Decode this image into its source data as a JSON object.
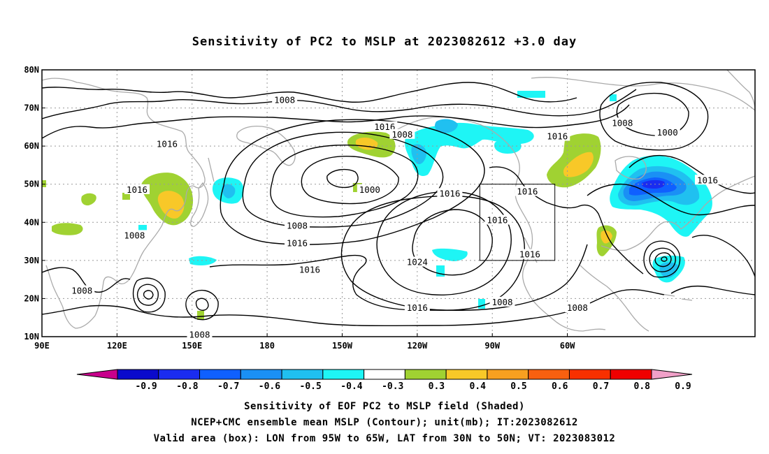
{
  "title": "Sensitivity of PC2 to MSLP at 2023082612 +3.0 day",
  "map": {
    "lon_labels": [
      "90E",
      "120E",
      "150E",
      "180",
      "150W",
      "120W",
      "90W",
      "60W"
    ],
    "lat_labels": [
      "80N",
      "70N",
      "60N",
      "50N",
      "40N",
      "30N",
      "20N",
      "10N"
    ],
    "contour_labels": [
      {
        "text": "1008",
        "lon": 187,
        "lat": 72.0
      },
      {
        "text": "1016",
        "lon": 140,
        "lat": 60.5
      },
      {
        "text": "1016",
        "lon": 227,
        "lat": 65.0
      },
      {
        "text": "1008",
        "lon": 234,
        "lat": 63.0
      },
      {
        "text": "1016",
        "lon": 296,
        "lat": 62.5
      },
      {
        "text": "1008",
        "lon": 322,
        "lat": 66.0
      },
      {
        "text": "1000",
        "lon": 340,
        "lat": 63.5
      },
      {
        "text": "1016",
        "lon": 128,
        "lat": 48.5
      },
      {
        "text": "1008",
        "lon": 127,
        "lat": 36.5
      },
      {
        "text": "1000",
        "lon": 221,
        "lat": 48.5
      },
      {
        "text": "1016",
        "lon": 253,
        "lat": 47.5
      },
      {
        "text": "1008",
        "lon": 192,
        "lat": 39.0
      },
      {
        "text": "1016",
        "lon": 192,
        "lat": 34.5
      },
      {
        "text": "1016",
        "lon": 197,
        "lat": 27.5
      },
      {
        "text": "1016",
        "lon": 284,
        "lat": 48.0
      },
      {
        "text": "1016",
        "lon": 272,
        "lat": 40.5
      },
      {
        "text": "1024",
        "lon": 240,
        "lat": 29.5
      },
      {
        "text": "1016",
        "lon": 285,
        "lat": 31.5
      },
      {
        "text": "1016",
        "lon": 356,
        "lat": 51.0
      },
      {
        "text": "1008",
        "lon": 106,
        "lat": 22.0
      },
      {
        "text": "1016",
        "lon": 240,
        "lat": 17.5
      },
      {
        "text": "1008",
        "lon": 274,
        "lat": 19.0
      },
      {
        "text": "1008",
        "lon": 304,
        "lat": 17.5
      },
      {
        "text": "1008",
        "lon": 153,
        "lat": 10.5
      }
    ]
  },
  "colorbar": {
    "labels": [
      "-0.9",
      "-0.8",
      "-0.7",
      "-0.6",
      "-0.5",
      "-0.4",
      "-0.3",
      "0.3",
      "0.4",
      "0.5",
      "0.6",
      "0.7",
      "0.8",
      "0.9"
    ],
    "colors": [
      "#c8008c",
      "#0a0acc",
      "#1a2cf0",
      "#0f60ff",
      "#1a90f5",
      "#20c0f0",
      "#1ef5f5",
      "#ffffff",
      "#a0d232",
      "#f8c828",
      "#f8a020",
      "#f86010",
      "#f83000",
      "#f00000",
      "#f0a0c8"
    ]
  },
  "caption": {
    "line1": "Sensitivity of EOF PC2 to MSLP field (Shaded)",
    "line2": "NCEP+CMC ensemble mean MSLP (Contour); unit(mb); IT:2023082612",
    "line3": "Valid area (box): LON from 95W to 65W, LAT from 30N to 50N; VT: 2023083012"
  }
}
